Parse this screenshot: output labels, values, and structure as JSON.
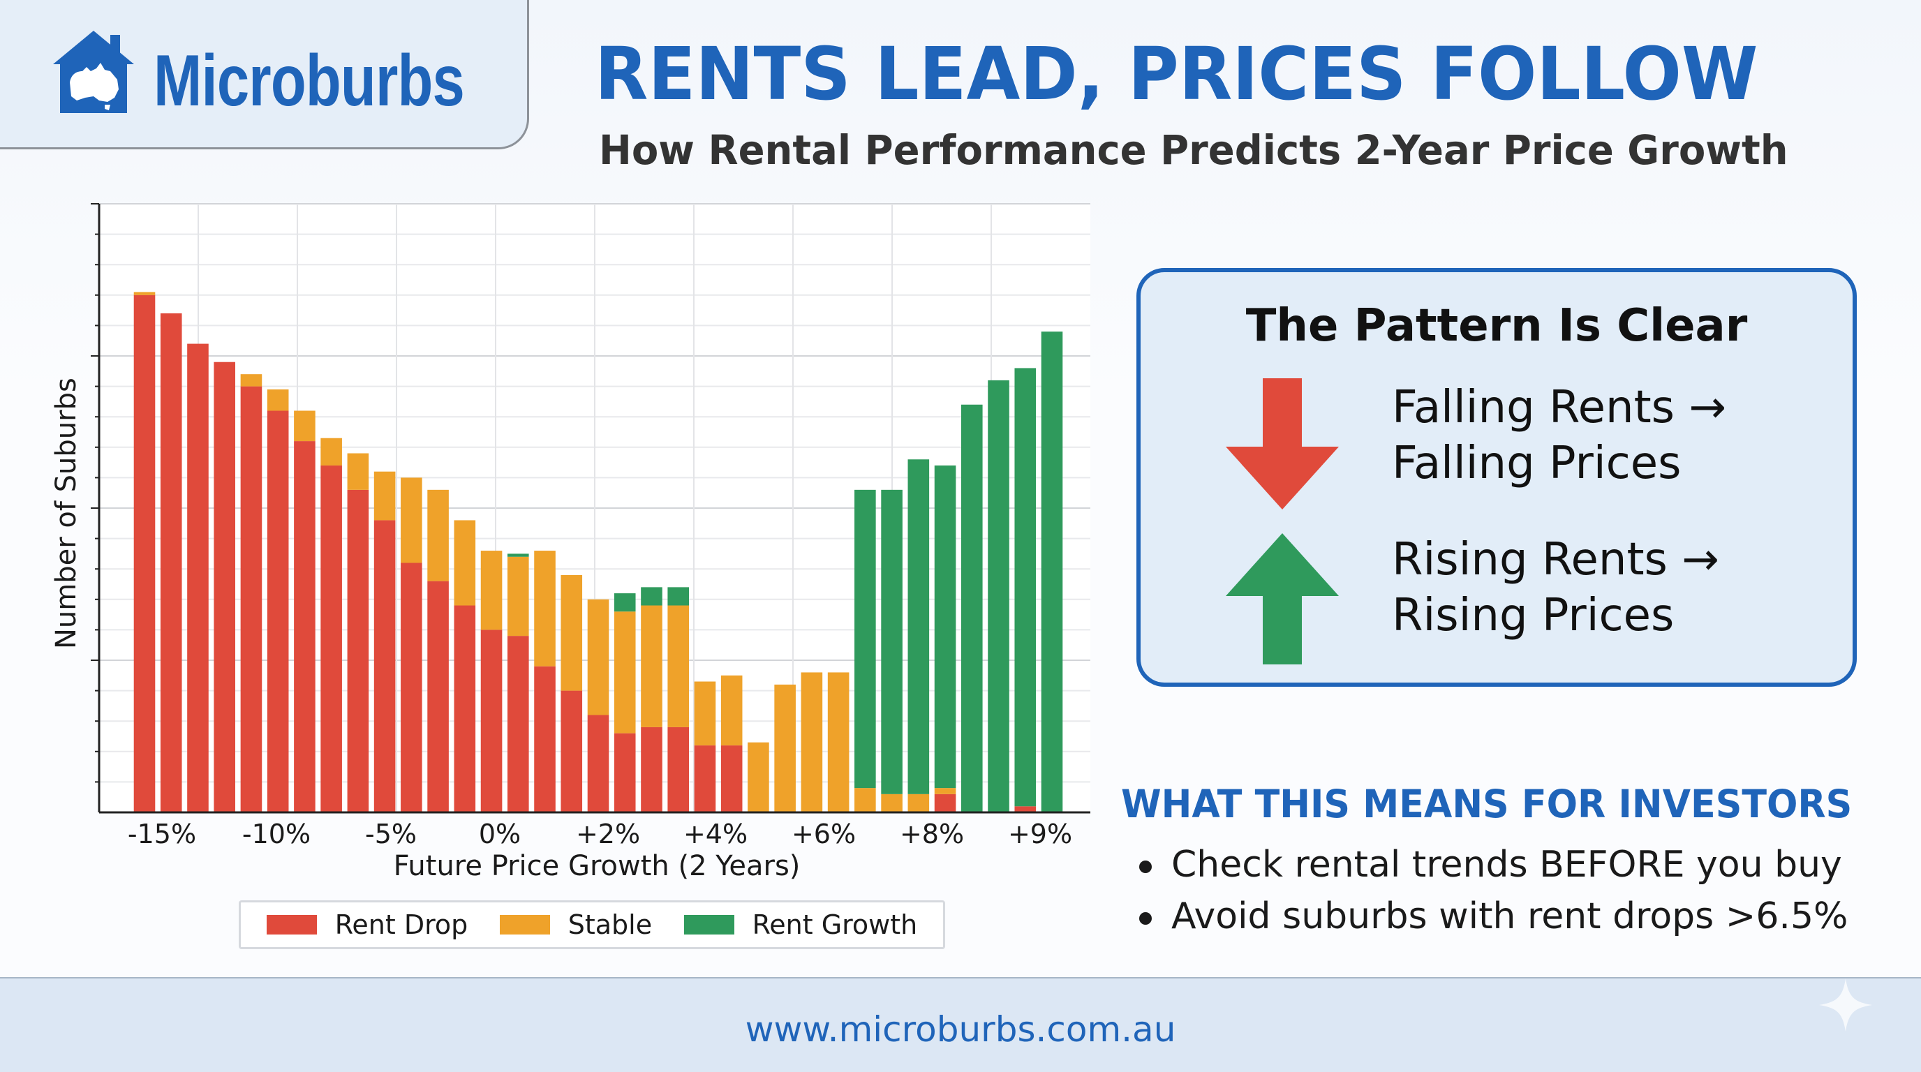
{
  "brand": {
    "name": "Microburbs",
    "primary_color": "#1f64b9",
    "logo_icon": "house-with-australia-map-icon"
  },
  "header": {
    "title": "RENTS LEAD, PRICES FOLLOW",
    "subtitle": "How Rental Performance Predicts 2-Year Price Growth"
  },
  "chart_data": {
    "type": "bar",
    "stacked": true,
    "xlabel": "Future Price Growth (2 Years)",
    "ylabel": "Number of Suburbs",
    "x_tick_labels": [
      "-15%",
      "-10%",
      "-5%",
      "0%",
      "+2%",
      "+4%",
      "+6%",
      "+8%",
      "+9%"
    ],
    "y_tick_labels_shown": false,
    "ylim": [
      0,
      100
    ],
    "grid": true,
    "legend_position": "bottom",
    "categories": [
      "b1",
      "b2",
      "b3",
      "b4",
      "b5",
      "b6",
      "b7",
      "b8",
      "b9",
      "b10",
      "b11",
      "b12",
      "b13",
      "b14",
      "b15",
      "b16",
      "b17",
      "b18",
      "b19",
      "b20",
      "b21",
      "b22",
      "b23",
      "b24",
      "b25",
      "b26",
      "b27",
      "b28",
      "b29",
      "b30",
      "b31",
      "b32",
      "b33",
      "b34",
      "b35"
    ],
    "series": [
      {
        "name": "Rent Drop",
        "color": "#e04a3b",
        "values": [
          85,
          82,
          77,
          74,
          70,
          66,
          61,
          57,
          53,
          48,
          41,
          38,
          34,
          30,
          29,
          24,
          20,
          16,
          13,
          14,
          14,
          11,
          11,
          0,
          0,
          0,
          0,
          0,
          0,
          0,
          3,
          0,
          0,
          1,
          0
        ]
      },
      {
        "name": "Stable",
        "color": "#efa22a",
        "values": [
          0.5,
          0,
          0,
          0,
          2,
          3.5,
          5,
          4.5,
          6,
          8,
          14,
          15,
          14,
          13,
          13,
          19,
          19,
          19,
          20,
          20,
          20,
          10.5,
          11.5,
          11.5,
          21,
          23,
          23,
          4,
          3,
          3,
          1,
          0,
          0,
          0,
          0
        ]
      },
      {
        "name": "Rent Growth",
        "color": "#2f9a5c",
        "values": [
          0,
          0,
          0,
          0,
          0,
          0,
          0,
          0,
          0,
          0,
          0,
          0,
          0,
          0,
          0.5,
          0,
          0,
          0,
          3,
          3,
          3,
          0,
          0,
          0,
          0,
          0,
          0,
          49,
          50,
          55,
          53,
          67,
          71,
          72,
          79
        ]
      }
    ]
  },
  "pattern_box": {
    "title": "The Pattern Is Clear",
    "items": [
      {
        "direction": "down",
        "color": "#e04a3b",
        "line1": "Falling Rents →",
        "line2": "Falling Prices"
      },
      {
        "direction": "up",
        "color": "#2f9a5c",
        "line1": "Rising Rents →",
        "line2": "Rising Prices"
      }
    ]
  },
  "investors": {
    "heading": "WHAT THIS MEANS FOR INVESTORS",
    "bullets": [
      "Check rental trends BEFORE you buy",
      "Avoid suburbs with rent drops >6.5%"
    ]
  },
  "footer": {
    "url": "www.microburbs.com.au"
  }
}
